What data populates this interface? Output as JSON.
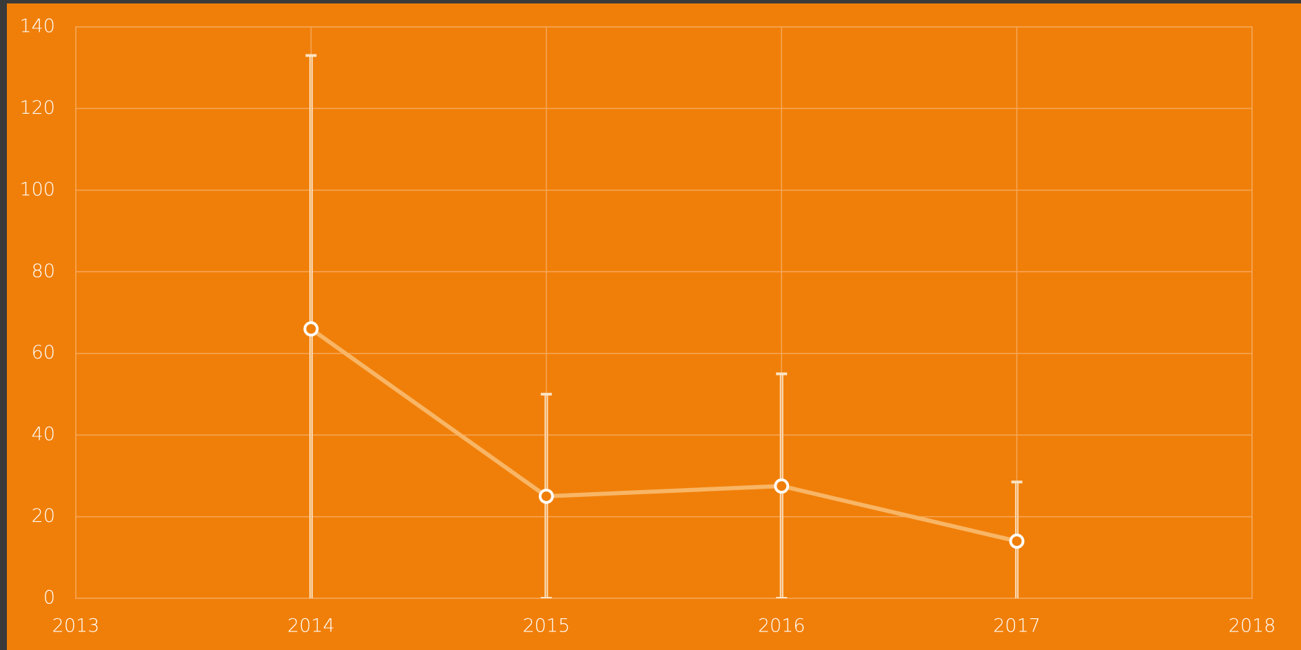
{
  "chart_data": {
    "type": "line",
    "x": [
      2014,
      2015,
      2016,
      2017
    ],
    "series": [
      {
        "color": "#f8b565",
        "values": [
          66,
          25,
          27.5,
          14
        ],
        "errors": [
          67,
          25,
          27.5,
          14.5
        ]
      }
    ],
    "xlim": [
      2013,
      2018
    ],
    "xticks": [
      2013,
      2014,
      2015,
      2016,
      2017,
      2018
    ],
    "ylim": [
      0,
      140
    ],
    "yticks": [
      0,
      20,
      40,
      60,
      80,
      100,
      120,
      140
    ],
    "grid": true
  }
}
